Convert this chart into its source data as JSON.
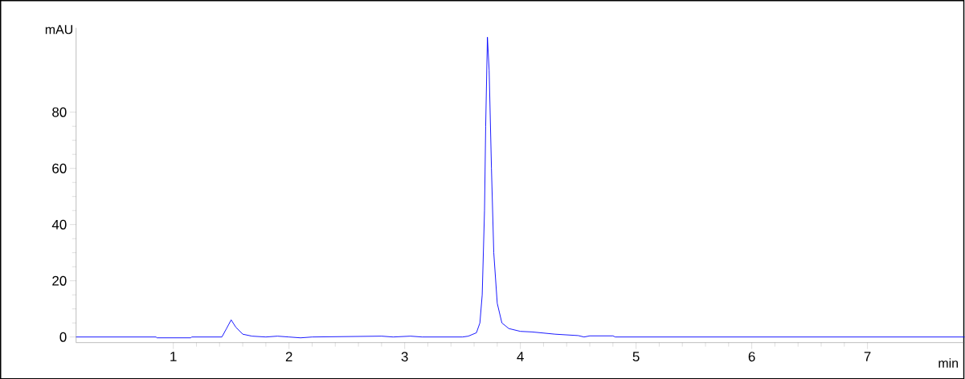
{
  "chart_data": {
    "type": "line",
    "xlabel": "min",
    "ylabel": "mAU",
    "x": [
      0.16,
      0.85,
      0.86,
      1.15,
      1.16,
      1.42,
      1.46,
      1.5,
      1.54,
      1.6,
      1.68,
      1.8,
      1.9,
      2.0,
      2.1,
      2.2,
      2.8,
      2.9,
      3.05,
      3.15,
      3.5,
      3.55,
      3.62,
      3.65,
      3.67,
      3.69,
      3.7,
      3.715,
      3.73,
      3.75,
      3.77,
      3.8,
      3.84,
      3.9,
      4.0,
      4.1,
      4.3,
      4.5,
      4.55,
      4.6,
      4.8,
      4.82,
      7.84
    ],
    "series": [
      {
        "color": "#0000ff",
        "values": [
          0,
          0,
          -0.3,
          -0.3,
          0,
          0,
          3,
          6.1,
          3.5,
          1,
          0.3,
          0,
          0.3,
          0,
          -0.3,
          0,
          0.3,
          0,
          0.3,
          0,
          0,
          0.3,
          1.5,
          5,
          15,
          45,
          75,
          106.7,
          95,
          60,
          30,
          12,
          5,
          3,
          2,
          1.8,
          1,
          0.5,
          0,
          0.4,
          0.4,
          0,
          0
        ]
      }
    ],
    "xlim": [
      0.16,
      7.84
    ],
    "ylim": [
      -2,
      110
    ],
    "xticks": [
      1,
      2,
      3,
      4,
      5,
      6,
      7
    ],
    "yticks": [
      0,
      20,
      40,
      60,
      80
    ],
    "grid": false,
    "marker": "none",
    "line_style": "solid"
  }
}
